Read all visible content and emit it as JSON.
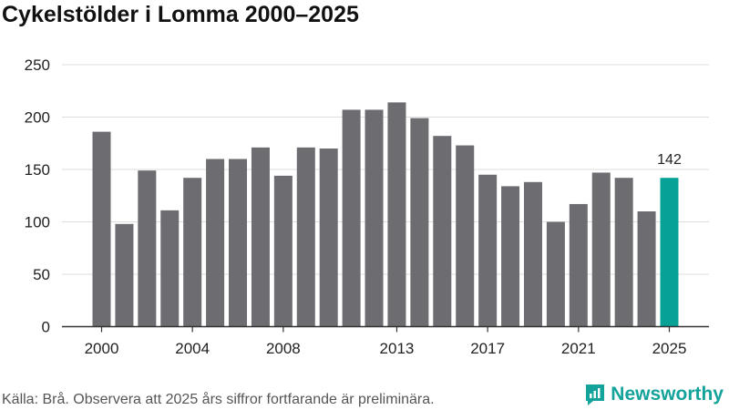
{
  "chart_data": {
    "type": "bar",
    "title": "Cykelstölder i Lomma 2000–2025",
    "xlabel": "",
    "ylabel": "",
    "ylim": [
      0,
      250
    ],
    "yticks": [
      0,
      50,
      100,
      150,
      200,
      250
    ],
    "xtick_labels": [
      "2000",
      "2004",
      "2008",
      "2013",
      "2017",
      "2021",
      "2025"
    ],
    "categories": [
      2000,
      2001,
      2002,
      2003,
      2004,
      2005,
      2006,
      2007,
      2008,
      2009,
      2010,
      2011,
      2012,
      2013,
      2014,
      2015,
      2016,
      2017,
      2018,
      2019,
      2020,
      2021,
      2022,
      2023,
      2024,
      2025
    ],
    "values": [
      186,
      98,
      149,
      111,
      142,
      160,
      160,
      171,
      144,
      171,
      170,
      207,
      207,
      214,
      199,
      182,
      173,
      145,
      134,
      138,
      100,
      117,
      147,
      142,
      110,
      142
    ],
    "highlight_index": 25,
    "highlight_label": "142",
    "colors": {
      "bar": "#6d6c71",
      "highlight": "#06a297",
      "grid": "#dddddd",
      "axis": "#333333"
    }
  },
  "footer": {
    "source": "Källa: Brå. Observera att 2025 års siffror fortfarande är preliminära.",
    "brand": "Newsworthy"
  }
}
